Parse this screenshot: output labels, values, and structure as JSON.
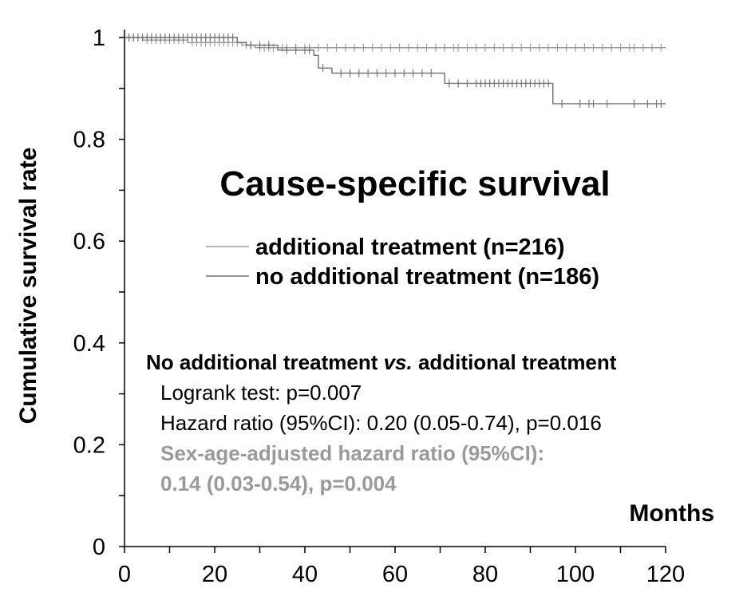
{
  "chart_data": {
    "type": "line",
    "title": "Cause-specific survival",
    "xlabel": "Months",
    "ylabel": "Cumulative survival rate",
    "xlim": [
      0,
      120
    ],
    "ylim": [
      0,
      1
    ],
    "x_ticks": [
      "0",
      "20",
      "40",
      "60",
      "80",
      "100",
      "120"
    ],
    "y_ticks": [
      "0",
      "0.2",
      "0.4",
      "0.6",
      "0.8",
      "1"
    ],
    "grid": false,
    "legend_position": "center",
    "series": [
      {
        "name": "additional treatment (n=216)",
        "color": "#9a9a9a",
        "step_x": [
          0,
          4,
          14,
          26,
          29,
          120
        ],
        "step_y": [
          1.0,
          0.995,
          0.99,
          0.985,
          0.98,
          0.98
        ],
        "censor_x": [
          1,
          2,
          3,
          5,
          6,
          7,
          8,
          9,
          10,
          11,
          12,
          13,
          15,
          16,
          17,
          18,
          19,
          20,
          21,
          22,
          23,
          24,
          25,
          27,
          28,
          30,
          31,
          32,
          33,
          35,
          36,
          38,
          40,
          41,
          43,
          45,
          47,
          49,
          51,
          53,
          55,
          57,
          59,
          61,
          63,
          65,
          67,
          69,
          71,
          73,
          74,
          76,
          78,
          80,
          82,
          84,
          86,
          88,
          90,
          92,
          94,
          96,
          98,
          100,
          102,
          104,
          106,
          108,
          110,
          112,
          113,
          115,
          117,
          119
        ]
      },
      {
        "name": "no additional treatment (n=186)",
        "color": "#707070",
        "step_x": [
          0,
          25,
          27,
          34,
          42,
          43,
          46,
          71,
          95,
          120
        ],
        "step_y": [
          1.0,
          0.99,
          0.985,
          0.975,
          0.965,
          0.94,
          0.93,
          0.91,
          0.87,
          0.87
        ],
        "censor_x": [
          1,
          2,
          3,
          4,
          5,
          6,
          7,
          8,
          9,
          10,
          11,
          12,
          13,
          14,
          15,
          16,
          17,
          18,
          19,
          20,
          21,
          22,
          23,
          24,
          28,
          30,
          32,
          36,
          38,
          40,
          41,
          44,
          48,
          50,
          52,
          54,
          56,
          58,
          60,
          62,
          64,
          66,
          68,
          72,
          74,
          76,
          78,
          79,
          80,
          81,
          82,
          83,
          84,
          85,
          86,
          87,
          88,
          89,
          90,
          91,
          92,
          93,
          94,
          97,
          101,
          103,
          104,
          107,
          113,
          116,
          118,
          119
        ]
      }
    ],
    "annotations": {
      "heading_prefix": "No additional treatment ",
      "heading_italic": "vs.",
      "heading_suffix": " additional treatment",
      "logrank": "Logrank test:  p=0.007",
      "hazard": "Hazard ratio (95%CI):  0.20 (0.05-0.74), p=0.016",
      "adjusted_1": "Sex-age-adjusted hazard ratio (95%CI):",
      "adjusted_2": "0.14 (0.03-0.54), p=0.004",
      "adjusted_color": "#9a9a9a"
    }
  }
}
